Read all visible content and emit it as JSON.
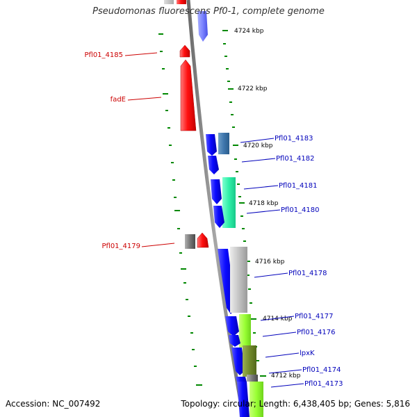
{
  "title": "Pseudomonas fluorescens Pf0-1, complete genome",
  "accession": "Accession: NC_007492",
  "summary": "Topology: circular; Length: 6,438,405 bp; Genes: 5,816",
  "colors": {
    "reverse_strand": "#ff0000",
    "forward_strand": "#0000ff",
    "backbone": "#808080",
    "tick": "#008800",
    "label_reverse": "#cc0000",
    "label_forward": "#0000bb"
  },
  "kbp_ticks": [
    "4724 kbp",
    "4722 kbp",
    "4720 kbp",
    "4718 kbp",
    "4716 kbp",
    "4714 kbp",
    "4712 kbp"
  ],
  "genes_left": [
    "Pfl01_4185",
    "fadE",
    "Pfl01_4179"
  ],
  "genes_right": [
    "Pfl01_4183",
    "Pfl01_4182",
    "Pfl01_4181",
    "Pfl01_4180",
    "Pfl01_4178",
    "Pfl01_4177",
    "Pfl01_4176",
    "lpxK",
    "Pfl01_4174",
    "Pfl01_4173"
  ]
}
